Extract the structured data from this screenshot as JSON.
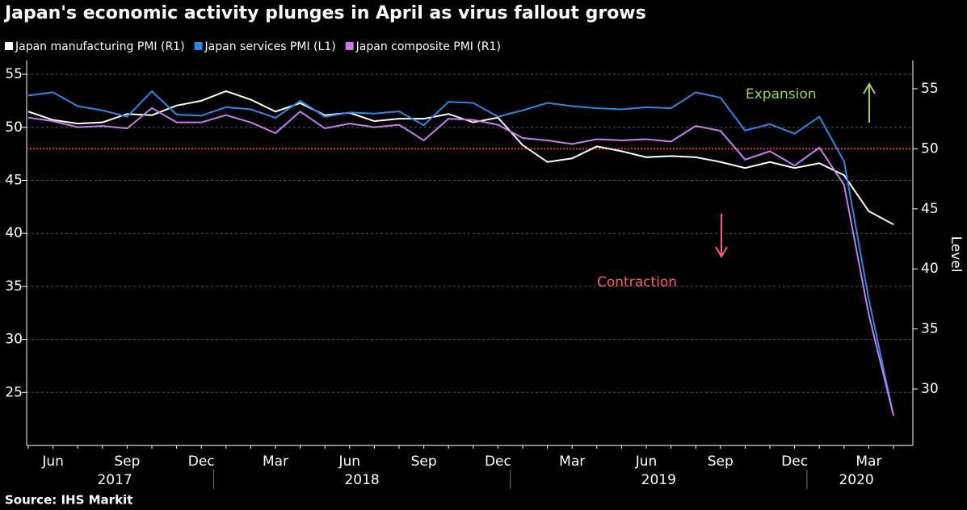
{
  "chart_data": {
    "type": "line",
    "title": "Japan's economic activity plunges in April as virus fallout grows",
    "source": "Source: IHS Markit",
    "y2label": "Level",
    "categories": [
      null,
      "Jun",
      null,
      null,
      "Sep",
      null,
      null,
      "Dec",
      null,
      null,
      "Mar",
      null,
      null,
      "Jun",
      null,
      null,
      "Sep",
      null,
      null,
      "Dec",
      null,
      null,
      "Mar",
      null,
      null,
      "Jun",
      null,
      null,
      "Sep",
      null,
      null,
      "Dec",
      null,
      null,
      "Mar",
      null
    ],
    "years": [
      {
        "label": "2017",
        "count": 8
      },
      {
        "label": "2018",
        "count": 12
      },
      {
        "label": "2019",
        "count": 12
      },
      {
        "label": "2020",
        "count": 4
      }
    ],
    "series": [
      {
        "name": "Japan manufacturing PMI (R1)",
        "color": "#ffffff",
        "axis": "y2",
        "values": [
          53.1,
          52.4,
          52.1,
          52.2,
          52.9,
          52.8,
          53.6,
          54.0,
          54.8,
          54.1,
          53.1,
          53.8,
          52.8,
          53.0,
          52.3,
          52.5,
          52.5,
          52.9,
          52.2,
          52.6,
          50.3,
          48.9,
          49.2,
          50.2,
          49.8,
          49.3,
          49.4,
          49.3,
          48.9,
          48.4,
          48.9,
          48.4,
          48.8,
          47.8,
          44.8,
          43.7
        ]
      },
      {
        "name": "Japan services PMI (L1)",
        "color": "#2f86e6",
        "axis": "y",
        "values": [
          53.0,
          53.3,
          52.0,
          51.6,
          51.0,
          53.4,
          51.2,
          51.1,
          51.9,
          51.7,
          50.9,
          52.5,
          51.0,
          51.4,
          51.3,
          51.5,
          50.2,
          52.4,
          52.3,
          51.0,
          51.6,
          52.3,
          52.0,
          51.8,
          51.7,
          51.9,
          51.8,
          53.3,
          52.8,
          49.7,
          50.3,
          49.4,
          51.0,
          46.8,
          33.8,
          22.8
        ]
      },
      {
        "name": "Japan composite PMI (R1)",
        "color": "#c77cf0",
        "axis": "y2",
        "values": [
          52.6,
          52.3,
          51.8,
          51.9,
          51.7,
          53.4,
          52.2,
          52.2,
          52.8,
          52.2,
          51.3,
          53.1,
          51.7,
          52.1,
          51.8,
          52.0,
          50.7,
          52.5,
          52.4,
          52.0,
          50.9,
          50.7,
          50.4,
          50.8,
          50.7,
          50.8,
          50.6,
          51.9,
          51.5,
          49.1,
          49.8,
          48.6,
          50.1,
          47.0,
          36.2,
          27.8
        ]
      }
    ],
    "ylim": [
      20,
      56.3
    ],
    "yticks": [
      25,
      30,
      35,
      40,
      45,
      50,
      55
    ],
    "y2lim": [
      25.3,
      57.35
    ],
    "y2ticks": [
      30,
      35,
      40,
      45,
      50,
      55
    ],
    "reference_line": {
      "value": 50,
      "axis": "y2",
      "color": "#e8303f"
    },
    "annotations": [
      {
        "text": "Expansion",
        "color": "#9fd356"
      },
      {
        "text": "Contraction",
        "color": "#ff5d73"
      }
    ],
    "grid": true
  }
}
